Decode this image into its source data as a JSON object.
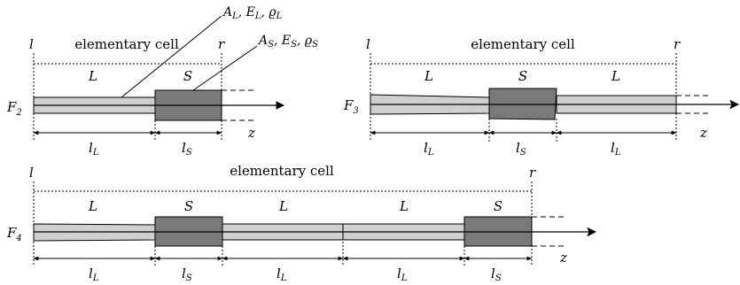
{
  "labels": {
    "cell": "elementary cell",
    "left": "l",
    "right": "r",
    "L": "L",
    "S": "S",
    "lL": "l",
    "lL_sub": "L",
    "lS": "l",
    "lS_sub": "S",
    "z": "z",
    "prop_L": "A_L, E_L, ϱ_L",
    "prop_S": "A_S, E_S, ϱ_S"
  },
  "figures": {
    "f2": {
      "name": "F",
      "sub": "2"
    },
    "f3": {
      "name": "F",
      "sub": "3"
    },
    "f4": {
      "name": "F",
      "sub": "4"
    }
  },
  "colors": {
    "light": "#cfcfcf",
    "dark": "#7a7a7a"
  }
}
